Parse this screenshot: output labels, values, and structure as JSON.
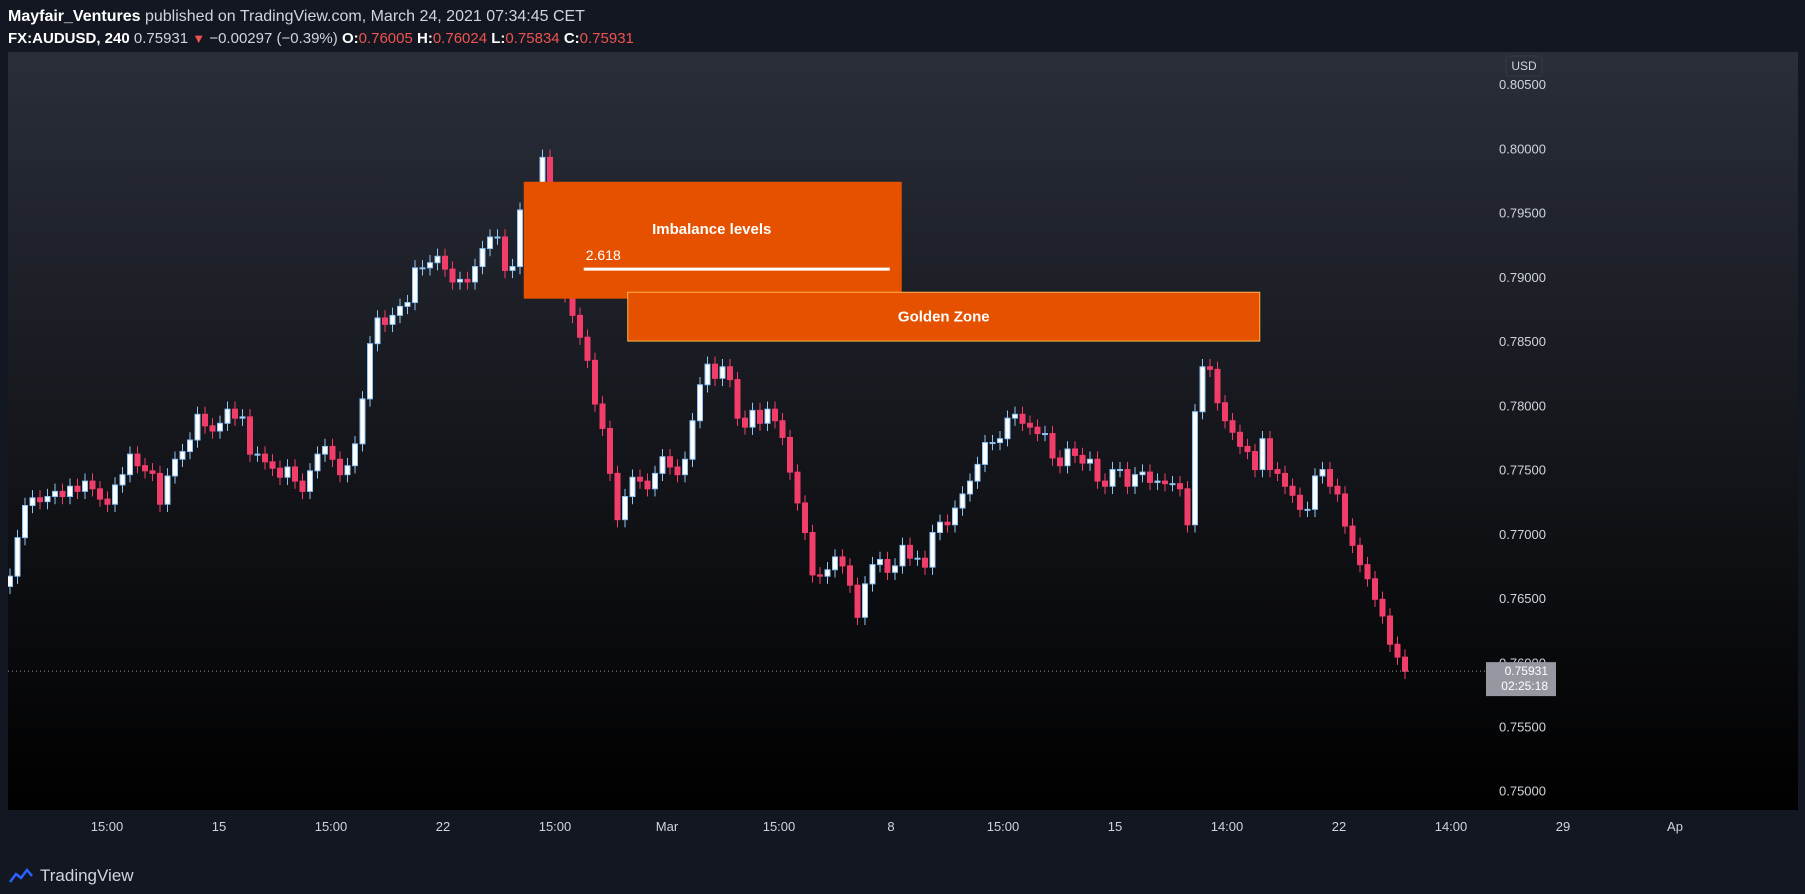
{
  "header": {
    "author": "Mayfair_Ventures",
    "published_text": " published on TradingView.com, March 24, 2021 07:34:45 CET",
    "symbol": "FX:AUDUSD, 240",
    "last": "0.75931",
    "change": "−0.00297 (−0.39%)",
    "o_label": "O:",
    "o": "0.76005",
    "h_label": "H:",
    "h": "0.76024",
    "l_label": "L:",
    "l": "0.75834",
    "c_label": "C:",
    "c": "0.75931"
  },
  "footer": {
    "brand": "TradingView"
  },
  "colors": {
    "background": "#131722",
    "up": "#8fc4f5",
    "down": "#f23d6a",
    "zone": "#e65100",
    "price_tag": "#9598a1"
  },
  "chart_data": {
    "type": "candlestick",
    "currency": "USD",
    "ylim": [
      0.7485,
      0.8075
    ],
    "y_ticks": [
      "0.80500",
      "0.80000",
      "0.79500",
      "0.79000",
      "0.78500",
      "0.78000",
      "0.77500",
      "0.77000",
      "0.76500",
      "0.76000",
      "0.75500",
      "0.75000"
    ],
    "x_ticks": [
      "15:00",
      "15",
      "15:00",
      "22",
      "15:00",
      "Mar",
      "15:00",
      "8",
      "15:00",
      "15",
      "14:00",
      "22",
      "14:00",
      "29",
      "Ap"
    ],
    "current_price": "0.75931",
    "countdown": "02:25:18",
    "annotations": [
      {
        "label": "Imbalance levels",
        "sub_label": "2.618",
        "y_top": 0.7974,
        "y_bottom": 0.7883,
        "line_y": 0.7906
      },
      {
        "label": "Golden Zone",
        "y_top": 0.7888,
        "y_bottom": 0.785
      }
    ],
    "closes": [
      0.7667,
      0.7697,
      0.7722,
      0.7728,
      0.7725,
      0.7729,
      0.7733,
      0.7729,
      0.7737,
      0.7733,
      0.7741,
      0.7735,
      0.7727,
      0.7723,
      0.7738,
      0.7746,
      0.7762,
      0.7753,
      0.7749,
      0.7747,
      0.7723,
      0.7745,
      0.7758,
      0.7764,
      0.7773,
      0.7793,
      0.7784,
      0.778,
      0.7786,
      0.7797,
      0.779,
      0.7791,
      0.7762,
      0.7762,
      0.7756,
      0.7751,
      0.7744,
      0.7752,
      0.7741,
      0.7733,
      0.7749,
      0.7762,
      0.7768,
      0.7758,
      0.7746,
      0.7753,
      0.777,
      0.7805,
      0.7848,
      0.7868,
      0.7863,
      0.787,
      0.7877,
      0.788,
      0.7907,
      0.7907,
      0.7911,
      0.7916,
      0.7906,
      0.7896,
      0.7898,
      0.7896,
      0.7908,
      0.7922,
      0.7931,
      0.7931,
      0.7905,
      0.7908,
      0.7952,
      0.7966,
      0.7963,
      0.7993,
      0.7962,
      0.792,
      0.7886,
      0.787,
      0.7853,
      0.7835,
      0.7801,
      0.7782,
      0.7747,
      0.7711,
      0.7729,
      0.7744,
      0.7741,
      0.7735,
      0.7747,
      0.776,
      0.7752,
      0.7746,
      0.7758,
      0.7788,
      0.7816,
      0.7832,
      0.7821,
      0.783,
      0.782,
      0.779,
      0.7783,
      0.7796,
      0.7786,
      0.7797,
      0.7788,
      0.7775,
      0.7748,
      0.7724,
      0.7701,
      0.7668,
      0.7667,
      0.7672,
      0.7682,
      0.7675,
      0.766,
      0.7635,
      0.7661,
      0.7676,
      0.768,
      0.767,
      0.7675,
      0.7691,
      0.7681,
      0.7681,
      0.7674,
      0.7701,
      0.7709,
      0.7707,
      0.772,
      0.7731,
      0.7741,
      0.7754,
      0.7771,
      0.7771,
      0.7774,
      0.779,
      0.7793,
      0.7786,
      0.7783,
      0.7778,
      0.7778,
      0.7759,
      0.7753,
      0.7766,
      0.7761,
      0.7755,
      0.7758,
      0.7741,
      0.7737,
      0.775,
      0.775,
      0.7737,
      0.7746,
      0.7748,
      0.774,
      0.7741,
      0.7739,
      0.7739,
      0.7735,
      0.7707,
      0.7795,
      0.783,
      0.7828,
      0.7802,
      0.7788,
      0.7779,
      0.7768,
      0.7764,
      0.775,
      0.7774,
      0.775,
      0.7747,
      0.7737,
      0.773,
      0.7719,
      0.7719,
      0.7745,
      0.775,
      0.7737,
      0.7731,
      0.7706,
      0.7691,
      0.7676,
      0.7665,
      0.7649,
      0.7636,
      0.7614,
      0.7604,
      0.7593
    ],
    "x_range": "Feb 2021 – Mar 24, 2021 (240-minute candles)"
  }
}
